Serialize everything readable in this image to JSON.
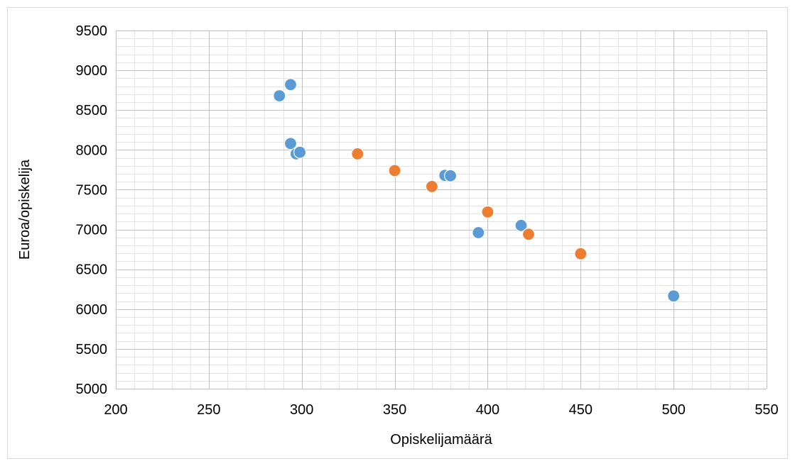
{
  "chart_data": {
    "type": "scatter",
    "xlabel": "Opiskelijamäärä",
    "ylabel": "Euroa/opiskelija",
    "xlim": [
      200,
      550
    ],
    "ylim": [
      5000,
      9500
    ],
    "x_major_step": 50,
    "x_minor_step": 10,
    "y_major_step": 500,
    "y_minor_step": 100,
    "x_ticks": [
      "200",
      "250",
      "300",
      "350",
      "400",
      "450",
      "500",
      "550"
    ],
    "y_ticks": [
      "5000",
      "5500",
      "6000",
      "6500",
      "7000",
      "7500",
      "8000",
      "8500",
      "9000",
      "9500"
    ],
    "grid": true,
    "legend": "none",
    "series": [
      {
        "color": "#5b9bd5",
        "points": [
          {
            "x": 288,
            "y": 8680
          },
          {
            "x": 294,
            "y": 8820
          },
          {
            "x": 294,
            "y": 8080
          },
          {
            "x": 297,
            "y": 7950
          },
          {
            "x": 299,
            "y": 7970
          },
          {
            "x": 377,
            "y": 7680
          },
          {
            "x": 380,
            "y": 7675
          },
          {
            "x": 395,
            "y": 6960
          },
          {
            "x": 418,
            "y": 7050
          },
          {
            "x": 500,
            "y": 6165
          }
        ]
      },
      {
        "color": "#ed7d31",
        "points": [
          {
            "x": 330,
            "y": 7950
          },
          {
            "x": 350,
            "y": 7740
          },
          {
            "x": 370,
            "y": 7540
          },
          {
            "x": 400,
            "y": 7220
          },
          {
            "x": 422,
            "y": 6940
          },
          {
            "x": 450,
            "y": 6695
          }
        ]
      }
    ]
  }
}
